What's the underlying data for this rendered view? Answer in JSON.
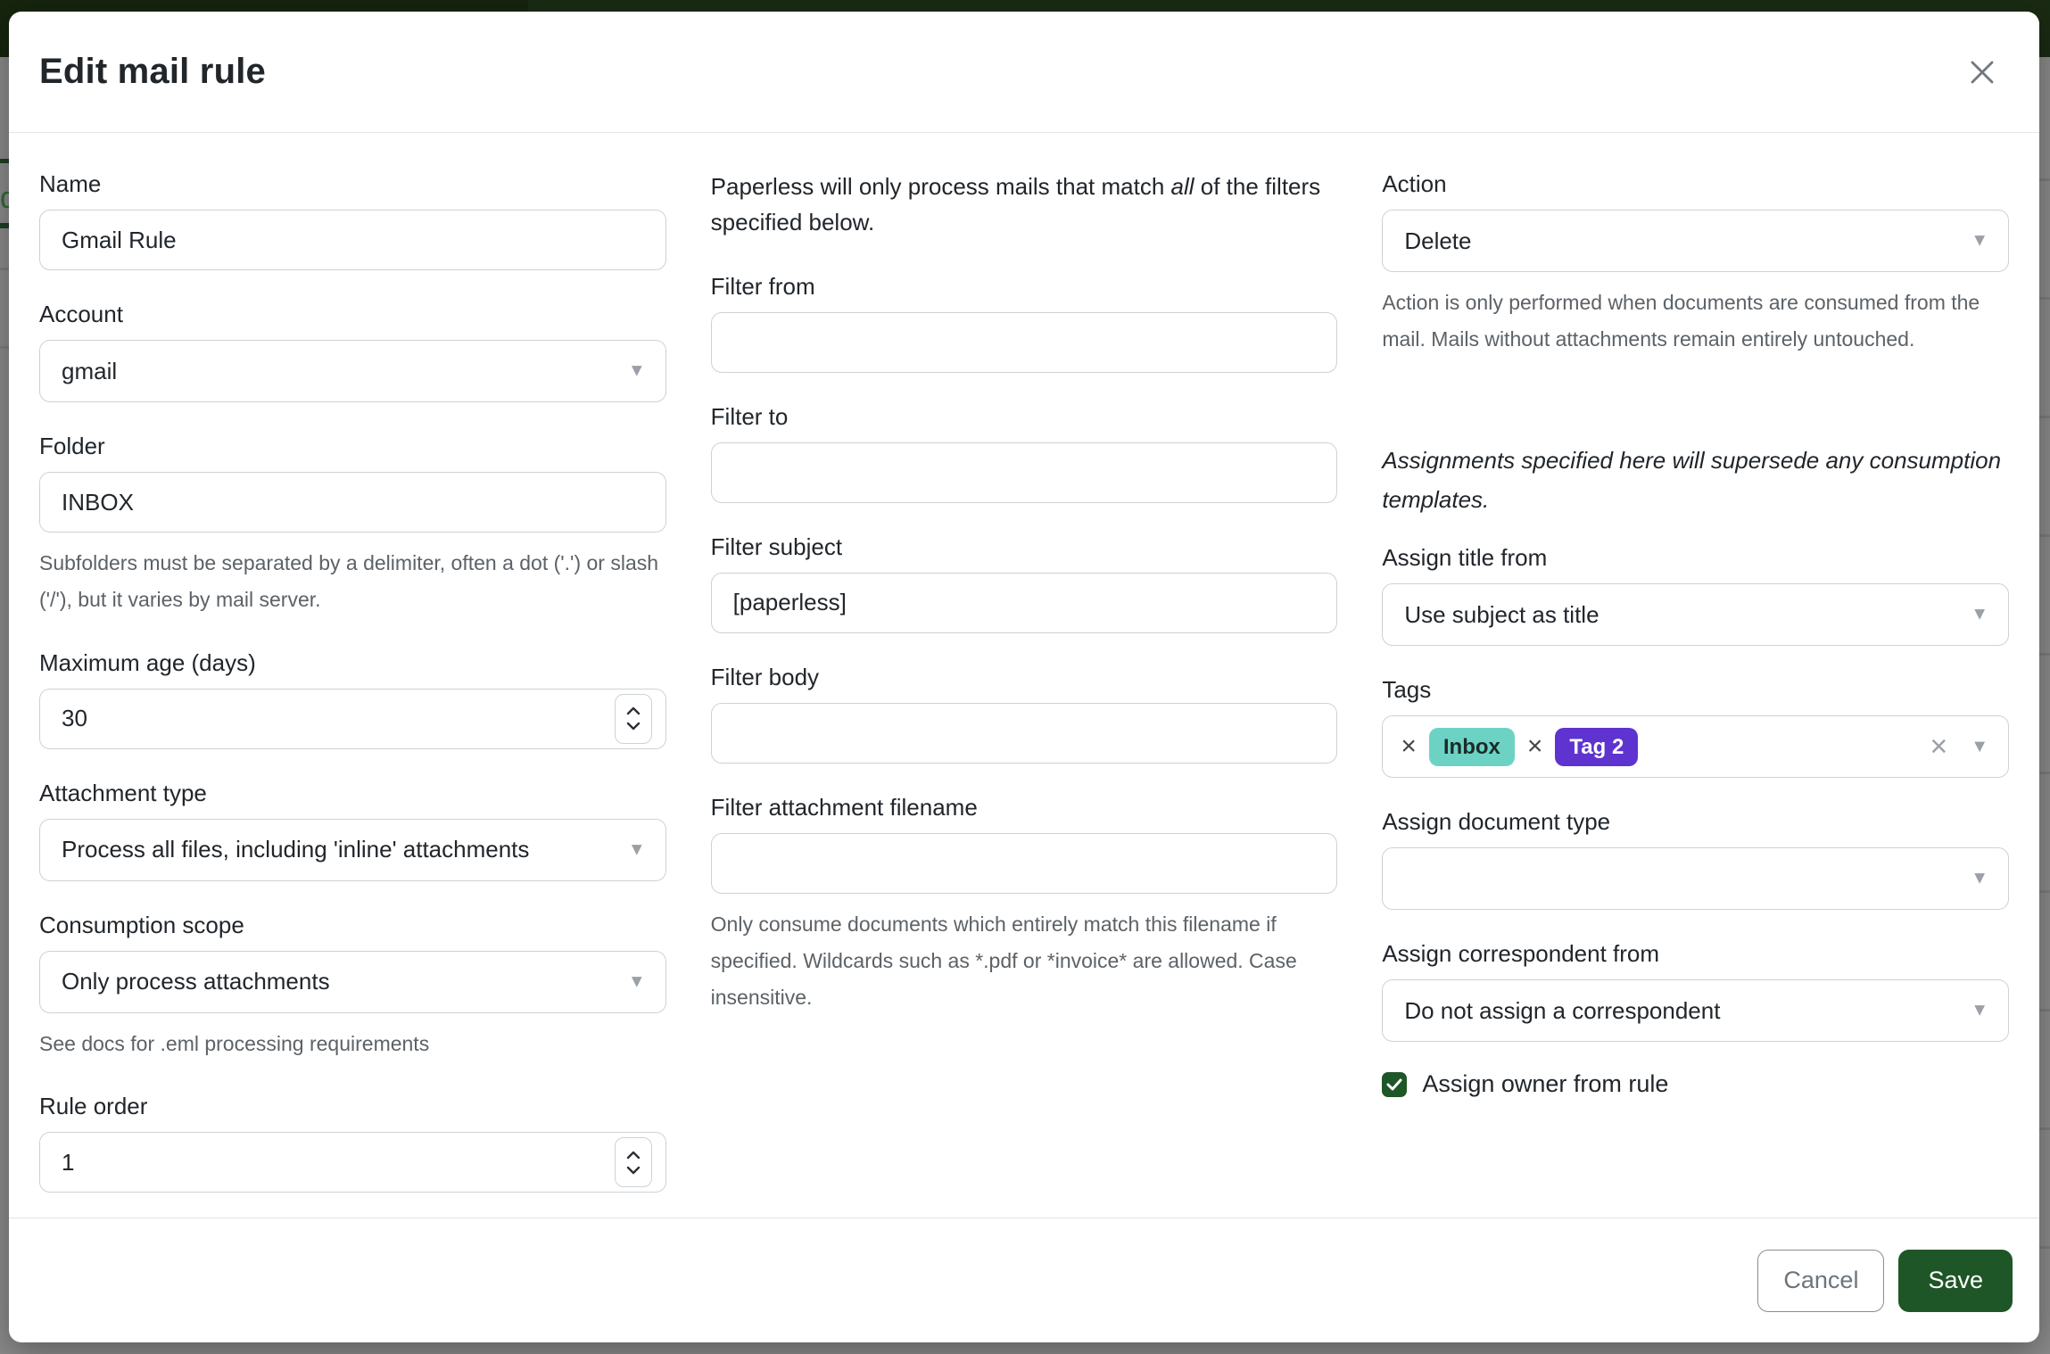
{
  "modal": {
    "title": "Edit mail rule"
  },
  "icons": {
    "close": "×",
    "dropdown_caret": "▼",
    "clear": "×",
    "chip_remove": "×"
  },
  "fields": {
    "name": {
      "label": "Name",
      "value": "Gmail Rule"
    },
    "account": {
      "label": "Account",
      "value": "gmail"
    },
    "folder": {
      "label": "Folder",
      "value": "INBOX",
      "help": "Subfolders must be separated by a delimiter, often a dot ('.') or slash ('/'), but it varies by mail server."
    },
    "max_age": {
      "label": "Maximum age (days)",
      "value": "30"
    },
    "attachment_type": {
      "label": "Attachment type",
      "value": "Process all files, including 'inline' attachments"
    },
    "consumption_scope": {
      "label": "Consumption scope",
      "value": "Only process attachments",
      "help": "See docs for .eml processing requirements"
    },
    "rule_order": {
      "label": "Rule order",
      "value": "1"
    }
  },
  "filters": {
    "intro_before": "Paperless will only process mails that match ",
    "intro_emphasis": "all",
    "intro_after": " of the filters specified below.",
    "from": {
      "label": "Filter from",
      "value": ""
    },
    "to": {
      "label": "Filter to",
      "value": ""
    },
    "subject": {
      "label": "Filter subject",
      "value": "[paperless]"
    },
    "body": {
      "label": "Filter body",
      "value": ""
    },
    "attachment_filename": {
      "label": "Filter attachment filename",
      "value": "",
      "help": "Only consume documents which entirely match this filename if specified. Wildcards such as *.pdf or *invoice* are allowed. Case insensitive."
    }
  },
  "action": {
    "label": "Action",
    "value": "Delete",
    "help": "Action is only performed when documents are consumed from the mail. Mails without attachments remain entirely untouched."
  },
  "assignments": {
    "note": "Assignments specified here will supersede any consumption templates.",
    "title_from": {
      "label": "Assign title from",
      "value": "Use subject as title"
    },
    "tags": {
      "label": "Tags",
      "selected": [
        {
          "name": "Inbox",
          "color": "#6cd3c4",
          "text_color": "#1c2b28"
        },
        {
          "name": "Tag 2",
          "color": "#5e33d0",
          "text_color": "#ffffff"
        }
      ]
    },
    "document_type": {
      "label": "Assign document type",
      "value": ""
    },
    "correspondent_from": {
      "label": "Assign correspondent from",
      "value": "Do not assign a correspondent"
    },
    "owner_checkbox": {
      "label": "Assign owner from rule",
      "checked": true
    }
  },
  "footer": {
    "cancel_label": "Cancel",
    "save_label": "Save"
  },
  "colors": {
    "primary_green": "#1f5627",
    "navbar_green_dim": "#1a2b13",
    "backdrop_gray": "#8b8b8b",
    "tag_inbox": "#6cd3c4",
    "tag_2": "#5e33d0"
  }
}
